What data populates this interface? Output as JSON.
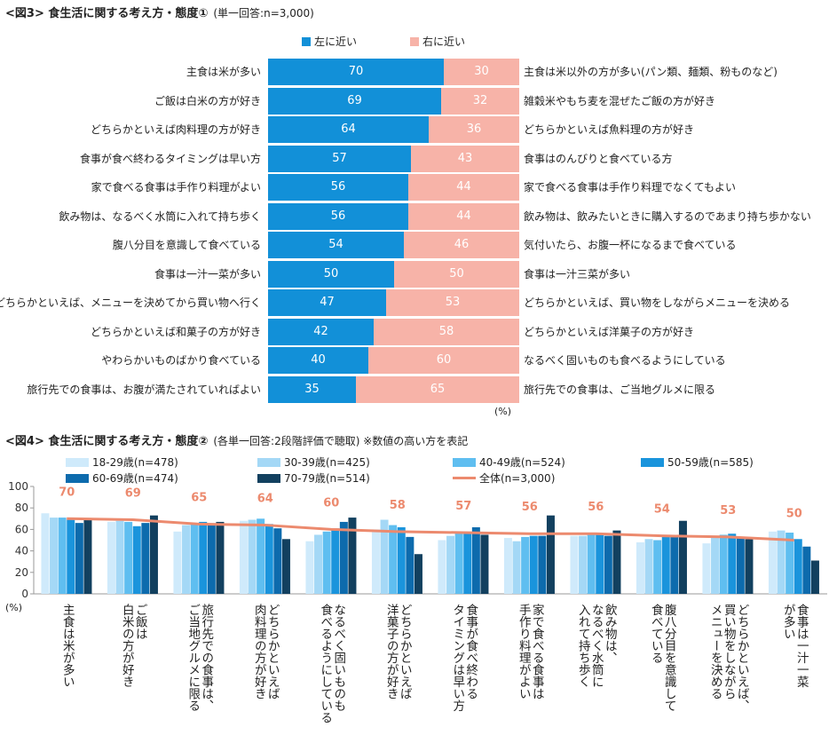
{
  "fig3": {
    "title": "<図3> 食生活に関する考え方・態度①",
    "subtitle": "(単一回答:n=3,000)",
    "legend_left": "左に近い",
    "legend_right": "右に近い",
    "unit": "(%)",
    "colors": {
      "left": "#1290d8",
      "right": "#f7b3a8"
    }
  },
  "fig4": {
    "title": "<図4> 食生活に関する考え方・態度②",
    "subtitle": "(各単一回答:2段階評価で聴取) ※数値の高い方を表記",
    "unit": "(%)",
    "total_legend": "全体(n=3,000)"
  },
  "chart_data": [
    {
      "type": "bar",
      "orientation": "horizontal-stacked",
      "title": "<図3> 食生活に関する考え方・態度①",
      "categories_left": [
        "主食は米が多い",
        "ご飯は白米の方が好き",
        "どちらかといえば肉料理の方が好き",
        "食事が食べ終わるタイミングは早い方",
        "家で食べる食事は手作り料理がよい",
        "飲み物は、なるべく水筒に入れて持ち歩く",
        "腹八分目を意識して食べている",
        "食事は一汁一菜が多い",
        "どちらかといえば、メニューを決めてから買い物へ行く",
        "どちらかといえば和菓子の方が好き",
        "やわらかいものばかり食べている",
        "旅行先での食事は、お腹が満たされていればよい"
      ],
      "categories_right": [
        "主食は米以外の方が多い(パン類、麺類、粉ものなど)",
        "雑穀米やもち麦を混ぜたご飯の方が好き",
        "どちらかといえば魚料理の方が好き",
        "食事はのんびりと食べている方",
        "家で食べる食事は手作り料理でなくてもよい",
        "飲み物は、飲みたいときに購入するのであまり持ち歩かない",
        "気付いたら、お腹一杯になるまで食べている",
        "食事は一汁三菜が多い",
        "どちらかといえば、買い物をしながらメニューを決める",
        "どちらかといえば洋菓子の方が好き",
        "なるべく固いものも食べるようにしている",
        "旅行先での食事は、ご当地グルメに限る"
      ],
      "series": [
        {
          "name": "左に近い",
          "values": [
            70,
            69,
            64,
            57,
            56,
            56,
            54,
            50,
            47,
            42,
            40,
            35
          ]
        },
        {
          "name": "右に近い",
          "values": [
            30,
            32,
            36,
            43,
            44,
            44,
            46,
            50,
            53,
            58,
            60,
            65
          ]
        }
      ],
      "xlim": [
        0,
        100
      ],
      "xlabel": "(%)"
    },
    {
      "type": "bar",
      "title": "<図4> 食生活に関する考え方・態度②",
      "categories": [
        "主食は米が多い",
        "ご飯は白米の方が好き",
        "旅行先での食事は、ご当地グルメに限る",
        "どちらかといえば肉料理の方が好き",
        "なるべく固いものも食べるようにしている",
        "どちらかといえば洋菓子の方が好き",
        "食事が食べ終わるタイミングは早い方",
        "家で食べる食事は手作り料理がよい",
        "飲み物は、なるべく水筒に入れて持ち歩く",
        "腹八分目を意識して食べている",
        "どちらかといえば、買い物をしながらメニューを決める",
        "食事は一汁一菜が多い"
      ],
      "category_label_columns": [
        [
          "主食は米が多い"
        ],
        [
          "ご飯は",
          "白米の方が好き"
        ],
        [
          "旅行先での食事は、",
          "ご当地グルメに限る"
        ],
        [
          "どちらかといえば",
          "肉料理の方が好き"
        ],
        [
          "なるべく固いものも",
          "食べるようにしている"
        ],
        [
          "どちらかといえば",
          "洋菓子の方が好き"
        ],
        [
          "食事が食べ終わる",
          "タイミングは早い方"
        ],
        [
          "家で食べる食事は",
          "手作り料理がよい"
        ],
        [
          "飲み物は、",
          "なるべく水筒に",
          "入れて持ち歩く"
        ],
        [
          "腹八分目を意識して",
          "食べている"
        ],
        [
          "どちらかといえば、",
          "買い物をしながら",
          "メニューを決める"
        ],
        [
          "食事は一汁一菜",
          "が多い"
        ]
      ],
      "series": [
        {
          "name": "18-29歳(n=478)",
          "color": "#cfeafb",
          "values": [
            75,
            67,
            58,
            68,
            49,
            60,
            50,
            52,
            54,
            48,
            47,
            58
          ]
        },
        {
          "name": "30-39歳(n=425)",
          "color": "#a4d8f6",
          "values": [
            71,
            68,
            64,
            69,
            55,
            69,
            54,
            49,
            54,
            51,
            53,
            59
          ]
        },
        {
          "name": "40-49歳(n=524)",
          "color": "#5fbef0",
          "values": [
            71,
            67,
            66,
            70,
            58,
            64,
            58,
            53,
            55,
            50,
            55,
            57
          ]
        },
        {
          "name": "50-59歳(n=585)",
          "color": "#1a94dc",
          "values": [
            69,
            63,
            67,
            65,
            61,
            62,
            57,
            54,
            55,
            53,
            56,
            51
          ]
        },
        {
          "name": "60-69歳(n=474)",
          "color": "#0d6bad",
          "values": [
            66,
            66,
            65,
            61,
            67,
            53,
            62,
            54,
            54,
            54,
            53,
            44
          ]
        },
        {
          "name": "70-79歳(n=514)",
          "color": "#12405f",
          "values": [
            69,
            73,
            67,
            51,
            71,
            37,
            55,
            73,
            59,
            68,
            51,
            31
          ]
        }
      ],
      "total": {
        "name": "全体(n=3,000)",
        "color": "#ec8a6e",
        "values": [
          70,
          69,
          65,
          64,
          60,
          58,
          57,
          56,
          56,
          54,
          53,
          50
        ]
      },
      "ylim": [
        0,
        100
      ],
      "yticks": [
        0,
        20,
        40,
        60,
        80,
        100
      ],
      "ylabel": "(%)"
    }
  ]
}
